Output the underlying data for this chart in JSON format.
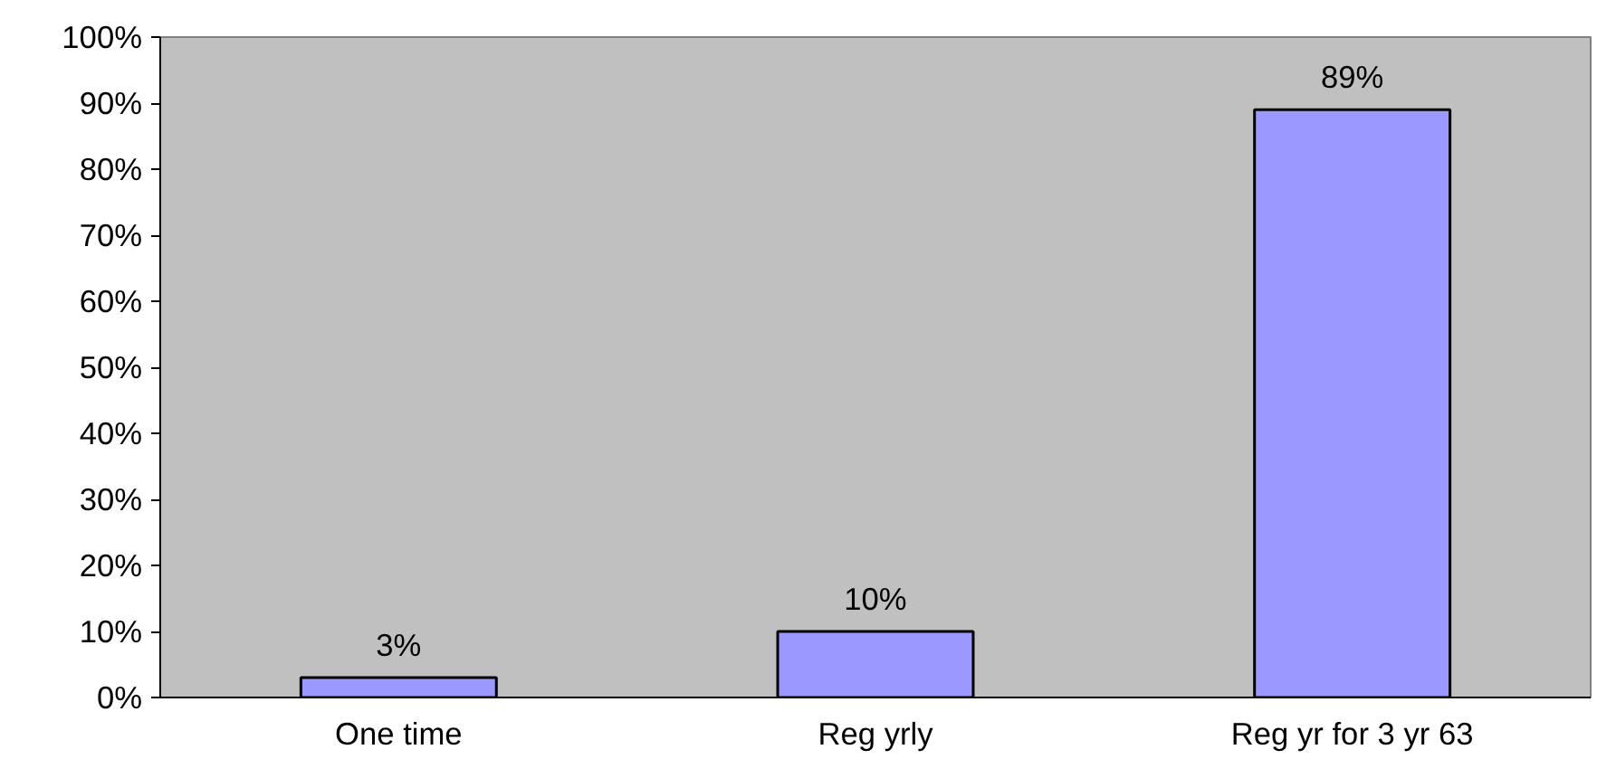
{
  "chart_data": {
    "type": "bar",
    "categories": [
      "One time",
      "Reg yrly",
      "Reg yr for 3 yr 63"
    ],
    "values": [
      3,
      10,
      89
    ],
    "color": "#9999ff",
    "value_labels": [
      "3%",
      "10%",
      "89%"
    ],
    "ylim": [
      0,
      100
    ],
    "yticks": [
      {
        "value": 0,
        "label": "0%"
      },
      {
        "value": 10,
        "label": "10%"
      },
      {
        "value": 20,
        "label": "20%"
      },
      {
        "value": 30,
        "label": "30%"
      },
      {
        "value": 40,
        "label": "40%"
      },
      {
        "value": 50,
        "label": "50%"
      },
      {
        "value": 60,
        "label": "60%"
      },
      {
        "value": 70,
        "label": "70%"
      },
      {
        "value": 80,
        "label": "80%"
      },
      {
        "value": 90,
        "label": "90%"
      },
      {
        "value": 100,
        "label": "100%"
      }
    ],
    "grid": false
  }
}
